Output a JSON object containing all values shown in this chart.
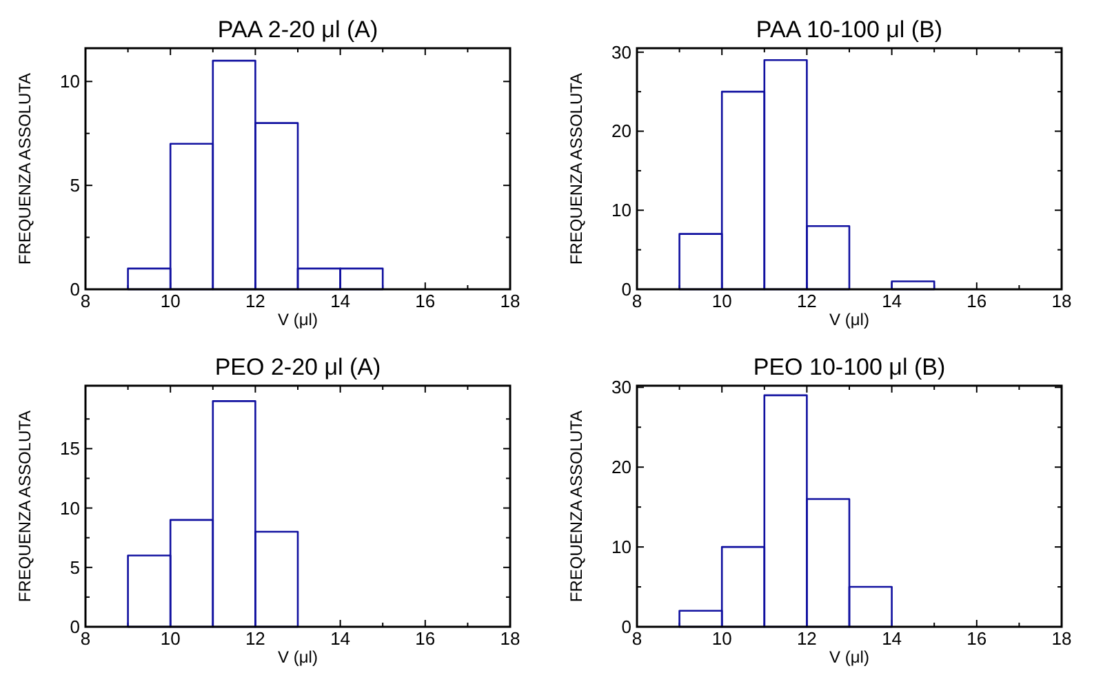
{
  "chart_data": [
    {
      "type": "histogram",
      "title": "PAA 2-20 μl (A)",
      "xlabel": "V (μl)",
      "ylabel": "FREQUENZA ASSOLUTA",
      "bins": [
        8,
        9,
        10,
        11,
        12,
        13,
        14,
        15,
        16,
        17,
        18
      ],
      "values": [
        0,
        1,
        7,
        11,
        8,
        1,
        1,
        0,
        0,
        0
      ],
      "color": "#1010a0",
      "xlim": [
        8,
        18
      ],
      "xticks": [
        8,
        {
          "value": 9,
          "label": null
        },
        10,
        {
          "value": 11,
          "label": null
        },
        12,
        {
          "value": 13,
          "label": null
        },
        14,
        {
          "value": 15,
          "label": null
        },
        16,
        {
          "value": 17,
          "label": null
        },
        18
      ],
      "ylim": [
        0,
        11.6
      ],
      "yticks": [
        0,
        {
          "value": 2.5,
          "label": null
        },
        5,
        {
          "value": 7.5,
          "label": null
        },
        10
      ],
      "grid": false
    },
    {
      "type": "histogram",
      "title": "PAA 10-100 μl (B)",
      "xlabel": "V (μl)",
      "ylabel": "FREQUENZA ASSOLUTA",
      "bins": [
        8,
        9,
        10,
        11,
        12,
        13,
        14,
        15,
        16,
        17,
        18
      ],
      "values": [
        0,
        7,
        25,
        29,
        8,
        0,
        1,
        0,
        0,
        0
      ],
      "color": "#1010a0",
      "xlim": [
        8,
        18
      ],
      "xticks": [
        8,
        {
          "value": 9,
          "label": null
        },
        10,
        {
          "value": 11,
          "label": null
        },
        12,
        {
          "value": 13,
          "label": null
        },
        14,
        {
          "value": 15,
          "label": null
        },
        16,
        {
          "value": 17,
          "label": null
        },
        18
      ],
      "ylim": [
        0,
        30.5
      ],
      "yticks": [
        0,
        {
          "value": 5,
          "label": null
        },
        10,
        {
          "value": 15,
          "label": null
        },
        20,
        {
          "value": 25,
          "label": null
        },
        30
      ],
      "grid": false
    },
    {
      "type": "histogram",
      "title": "PEO 2-20 μl (A)",
      "xlabel": "V (μl)",
      "ylabel": "FREQUENZA ASSOLUTA",
      "bins": [
        8,
        9,
        10,
        11,
        12,
        13,
        14,
        15,
        16,
        17,
        18
      ],
      "values": [
        0,
        6,
        9,
        19,
        8,
        0,
        0,
        0,
        0,
        0
      ],
      "color": "#1010a0",
      "xlim": [
        8,
        18
      ],
      "xticks": [
        8,
        {
          "value": 9,
          "label": null
        },
        10,
        {
          "value": 11,
          "label": null
        },
        12,
        {
          "value": 13,
          "label": null
        },
        14,
        {
          "value": 15,
          "label": null
        },
        16,
        {
          "value": 17,
          "label": null
        },
        18
      ],
      "ylim": [
        0,
        20.3
      ],
      "yticks": [
        0,
        {
          "value": 2.5,
          "label": null
        },
        5,
        {
          "value": 7.5,
          "label": null
        },
        10,
        {
          "value": 12.5,
          "label": null
        },
        15,
        {
          "value": 17.5,
          "label": null
        }
      ],
      "grid": false
    },
    {
      "type": "histogram",
      "title": "PEO 10-100 μl (B)",
      "xlabel": "V (μl)",
      "ylabel": "FREQUENZA ASSOLUTA",
      "bins": [
        8,
        9,
        10,
        11,
        12,
        13,
        14,
        15,
        16,
        17,
        18
      ],
      "values": [
        0,
        2,
        10,
        29,
        16,
        5,
        0,
        0,
        0,
        0
      ],
      "color": "#1010a0",
      "xlim": [
        8,
        18
      ],
      "xticks": [
        8,
        {
          "value": 9,
          "label": null
        },
        10,
        {
          "value": 11,
          "label": null
        },
        12,
        {
          "value": 13,
          "label": null
        },
        14,
        {
          "value": 15,
          "label": null
        },
        16,
        {
          "value": 17,
          "label": null
        },
        18
      ],
      "ylim": [
        0,
        30.2
      ],
      "yticks": [
        0,
        {
          "value": 5,
          "label": null
        },
        10,
        {
          "value": 15,
          "label": null
        },
        20,
        {
          "value": 25,
          "label": null
        },
        30
      ],
      "grid": false
    }
  ]
}
